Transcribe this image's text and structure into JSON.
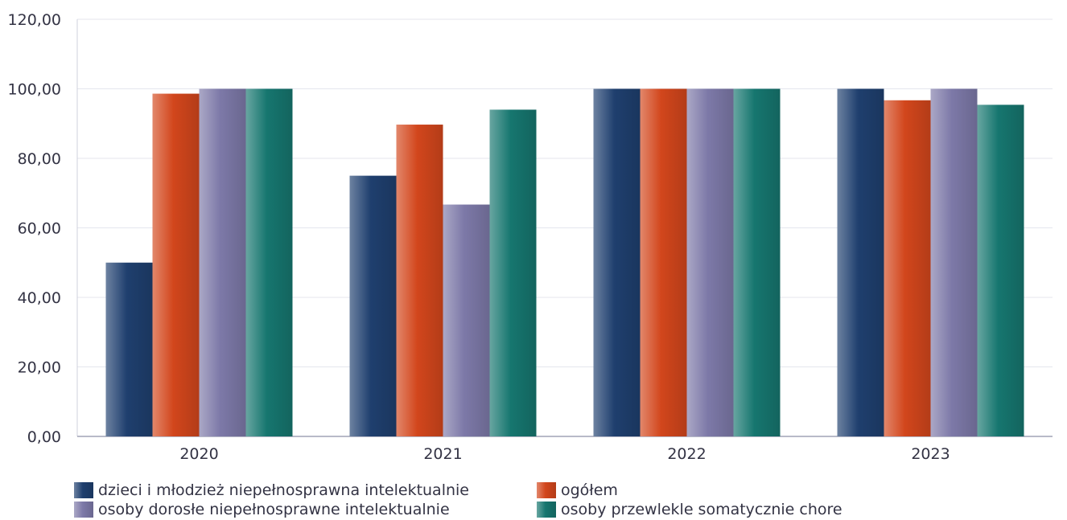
{
  "chart_data": {
    "type": "bar",
    "categories": [
      "2020",
      "2021",
      "2022",
      "2023"
    ],
    "series": [
      {
        "name": "dzieci i młodzież niepełnosprawna intelektualnie",
        "values": [
          50.0,
          75.0,
          100.0,
          100.0
        ],
        "color": "#1f3f6e"
      },
      {
        "name": "ogółem",
        "values": [
          98.6,
          89.7,
          100.0,
          96.7
        ],
        "color": "#d2461c"
      },
      {
        "name": "osoby dorosłe niepełnosprawne intelektualnie",
        "values": [
          100.0,
          66.7,
          100.0,
          100.0
        ],
        "color": "#7d79a8"
      },
      {
        "name": "osoby przewlekle somatycznie chore",
        "values": [
          100.0,
          94.0,
          100.0,
          95.4
        ],
        "color": "#16766f"
      }
    ],
    "yticks": [
      "0,00",
      "20,00",
      "40,00",
      "60,00",
      "80,00",
      "100,00",
      "120,00"
    ],
    "ylim": [
      0,
      120
    ],
    "grid": true,
    "legend_position": "bottom"
  }
}
